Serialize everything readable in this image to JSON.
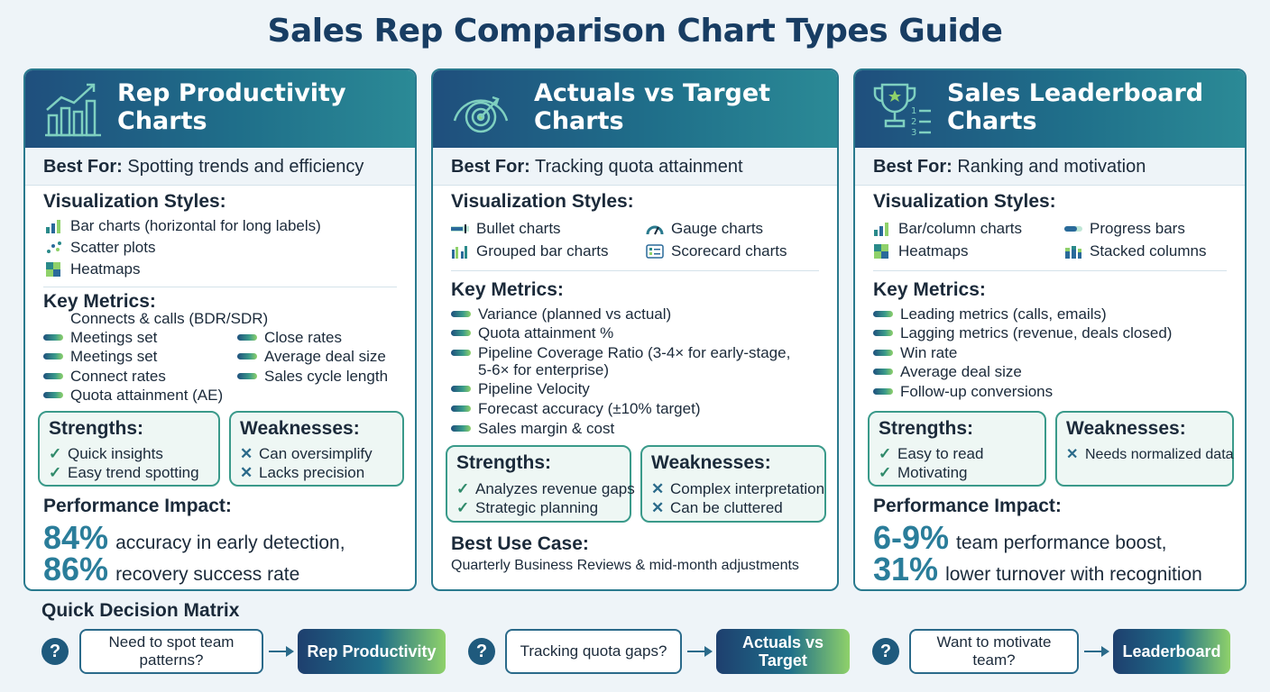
{
  "title": "Sales Rep Comparison Chart Types Guide",
  "common": {
    "best_for_label": "Best For:",
    "vis_styles_label": "Visualization Styles:",
    "key_metrics_label": "Key Metrics:",
    "strengths_label": "Strengths:",
    "weaknesses_label": "Weaknesses:",
    "impact_label": "Performance Impact:"
  },
  "cards": [
    {
      "title": "Rep Productivity\nCharts",
      "icon": "growth-chart-icon",
      "best_for": "Spotting trends and efficiency",
      "vis_styles": [
        "Bar charts (horizontal for long labels)",
        "Scatter plots",
        "Heatmaps"
      ],
      "metrics_intro": "Connects & calls (BDR/SDR)",
      "metrics_left": [
        "Meetings set",
        "Meetings set",
        "Connect rates",
        "Quota attainment (AE)"
      ],
      "metrics_right": [
        "Close rates",
        "Average deal size",
        "Sales cycle length"
      ],
      "strengths": [
        "Quick insights",
        "Easy trend spotting"
      ],
      "weaknesses": [
        "Can oversimplify",
        "Lacks precision"
      ],
      "impact": [
        {
          "value": "84%",
          "text": "accuracy in early detection,"
        },
        {
          "value": "86%",
          "text": "recovery success rate"
        }
      ]
    },
    {
      "title": "Actuals vs Target\nCharts",
      "icon": "gauge-target-icon",
      "best_for": "Tracking quota attainment",
      "vis_styles": [
        "Bullet charts",
        "Gauge charts",
        "Grouped bar charts",
        "Scorecard charts"
      ],
      "metrics": [
        "Variance (planned vs actual)",
        "Quota attainment %",
        "Pipeline Coverage Ratio (3-4× for early-stage,",
        "Pipeline Velocity",
        "Forecast accuracy (±10% target)",
        "Sales margin & cost"
      ],
      "metric_continuation": "5-6× for enterprise)",
      "strengths": [
        "Analyzes revenue gaps",
        "Strategic planning"
      ],
      "weaknesses": [
        "Complex interpretation",
        "Can be cluttered"
      ],
      "use_case_label": "Best Use Case:",
      "use_case": "Quarterly Business Reviews & mid-month adjustments"
    },
    {
      "title": "Sales Leaderboard\nCharts",
      "icon": "trophy-ranking-icon",
      "best_for": "Ranking and motivation",
      "vis_styles": [
        "Bar/column charts",
        "Progress bars",
        "Heatmaps",
        "Stacked columns"
      ],
      "metrics": [
        "Leading metrics (calls, emails)",
        "Lagging metrics (revenue, deals closed)",
        "Win rate",
        "Average deal size",
        "Follow-up conversions"
      ],
      "strengths": [
        "Easy to read",
        "Motivating"
      ],
      "weaknesses": [
        "Needs normalized data"
      ],
      "impact": [
        {
          "value": "6-9%",
          "text": "team performance boost,"
        },
        {
          "value": "31%",
          "text": "lower turnover with recognition"
        }
      ]
    }
  ],
  "matrix": {
    "title": "Quick Decision Matrix",
    "q_mark": "?",
    "rows": [
      {
        "question": "Need to spot team patterns?",
        "result": "Rep Productivity"
      },
      {
        "question": "Tracking quota gaps?",
        "result": "Actuals vs Target"
      },
      {
        "question": "Want to motivate team?",
        "result": "Leaderboard"
      }
    ]
  },
  "colors": {
    "header_start": "#1f4f7d",
    "header_end": "#2b8a96",
    "accent_green": "#8fd16a",
    "border_teal": "#2a7a8e",
    "title_navy": "#183d63"
  }
}
